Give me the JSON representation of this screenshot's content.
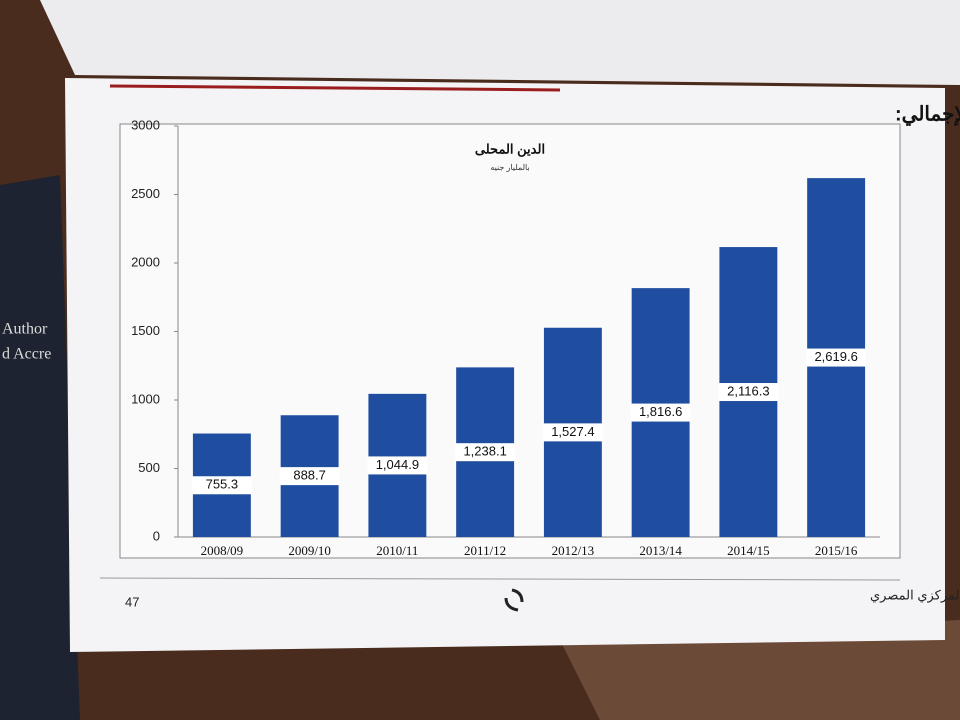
{
  "chart_data": {
    "type": "bar",
    "title": "الدين المحلى",
    "subtitle": "بالمليار جنيه",
    "categories": [
      "2008/09",
      "2009/10",
      "2010/11",
      "2011/12",
      "2012/13",
      "2013/14",
      "2014/15",
      "2015/16"
    ],
    "values": [
      755.3,
      888.7,
      1044.9,
      1238.1,
      1527.4,
      1816.6,
      2116.3,
      2619.6
    ],
    "value_labels": [
      "755.3",
      "888.7",
      "1,044.9",
      "1,238.1",
      "1,527.4",
      "1,816.6",
      "2,116.3",
      "2,619.6"
    ],
    "color": "#1f4d9f",
    "ylim": [
      0,
      3000
    ],
    "yticks": [
      0,
      500,
      1000,
      1500,
      2000,
      2500,
      3000
    ],
    "grid": false
  },
  "page": {
    "heading": "الدين العام المحلى ونسبته الى الناتج المحلى الإجمالي:",
    "footer": "البنك المركزي المصري",
    "page_number": "47"
  },
  "background": {
    "book_text": [
      "Author",
      "d Accre"
    ]
  }
}
